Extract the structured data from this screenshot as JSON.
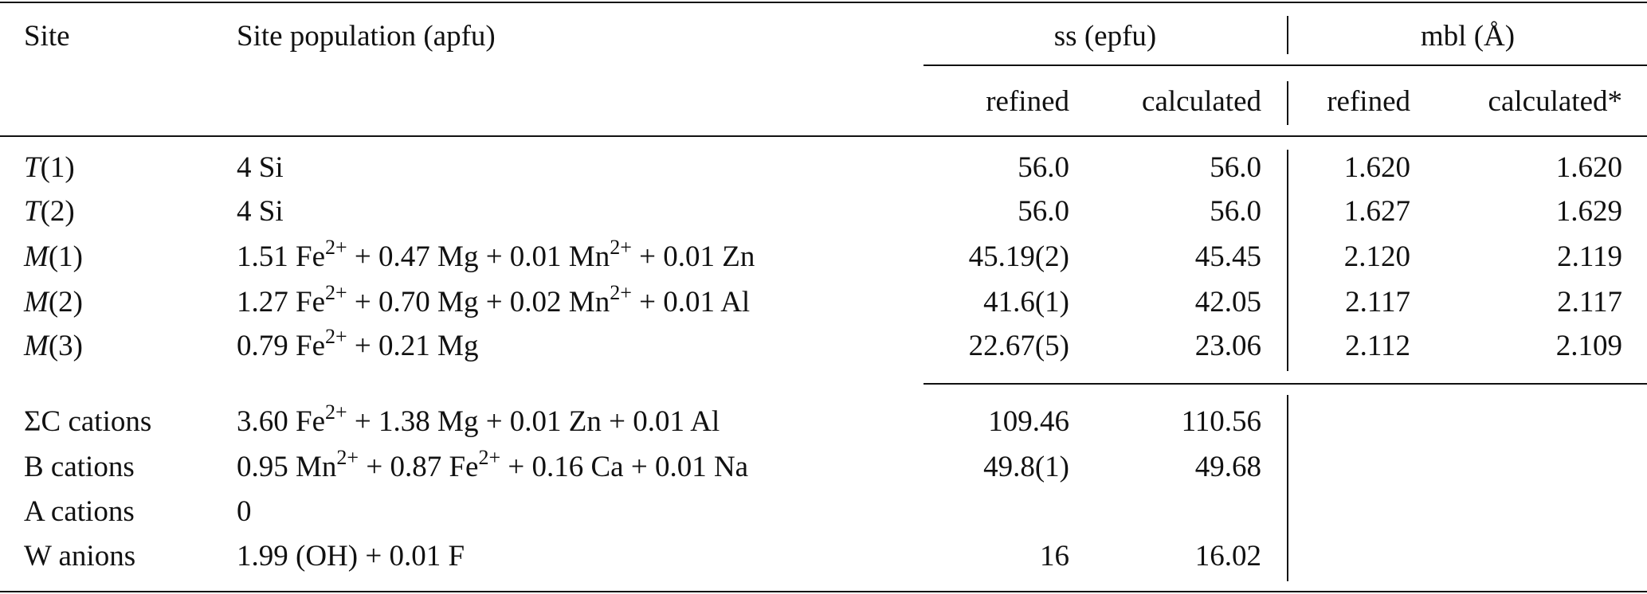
{
  "header": {
    "site": "Site",
    "population": "Site population (apfu)",
    "ss_group": "ss (epfu)",
    "mbl_group": "mbl (Å)",
    "ss_refined": "refined",
    "ss_calculated": "calculated",
    "mbl_refined": "refined",
    "mbl_calculated": "calculated*"
  },
  "rows": [
    {
      "site_italic": "T",
      "site_rest": "(1)",
      "population": [
        {
          "t": "4 Si"
        }
      ],
      "ss_refined": "56.0",
      "ss_calculated": "56.0",
      "mbl_refined": "1.620",
      "mbl_calculated": "1.620"
    },
    {
      "site_italic": "T",
      "site_rest": "(2)",
      "population": [
        {
          "t": "4 Si"
        }
      ],
      "ss_refined": "56.0",
      "ss_calculated": "56.0",
      "mbl_refined": "1.627",
      "mbl_calculated": "1.629"
    },
    {
      "site_italic": "M",
      "site_rest": "(1)",
      "population": [
        {
          "t": "1.51 Fe",
          "sup": "2+"
        },
        {
          "t": "+ 0.47 Mg + 0.01 Mn",
          "sup": "2+"
        },
        {
          "t": "+ 0.01 Zn"
        }
      ],
      "ss_refined": "45.19(2)",
      "ss_calculated": "45.45",
      "mbl_refined": "2.120",
      "mbl_calculated": "2.119"
    },
    {
      "site_italic": "M",
      "site_rest": "(2)",
      "population": [
        {
          "t": "1.27 Fe",
          "sup": "2+"
        },
        {
          "t": "+ 0.70 Mg + 0.02 Mn",
          "sup": "2+"
        },
        {
          "t": "+ 0.01 Al"
        }
      ],
      "ss_refined": "41.6(1)",
      "ss_calculated": "42.05",
      "mbl_refined": "2.117",
      "mbl_calculated": "2.117"
    },
    {
      "site_italic": "M",
      "site_rest": "(3)",
      "population": [
        {
          "t": "0.79 Fe",
          "sup": "2+"
        },
        {
          "t": "+ 0.21 Mg"
        }
      ],
      "ss_refined": "22.67(5)",
      "ss_calculated": "23.06",
      "mbl_refined": "2.112",
      "mbl_calculated": "2.109"
    }
  ],
  "summary_rows": [
    {
      "site": "ΣC cations",
      "population": [
        {
          "t": "3.60 Fe",
          "sup": "2+"
        },
        {
          "t": "+ 1.38 Mg + 0.01 Zn + 0.01 Al"
        }
      ],
      "ss_refined": "109.46",
      "ss_calculated": "110.56"
    },
    {
      "site": "B cations",
      "population": [
        {
          "t": "0.95 Mn",
          "sup": "2+"
        },
        {
          "t": "+ 0.87 Fe",
          "sup": "2+"
        },
        {
          "t": "+ 0.16 Ca + 0.01 Na"
        }
      ],
      "ss_refined": "49.8(1)",
      "ss_calculated": "49.68"
    },
    {
      "site": "A cations",
      "population": [
        {
          "t": "0"
        }
      ],
      "ss_refined": "",
      "ss_calculated": ""
    },
    {
      "site": "W anions",
      "population": [
        {
          "t": "1.99 (OH) + 0.01 F"
        }
      ],
      "ss_refined": "16",
      "ss_calculated": "16.02"
    }
  ]
}
